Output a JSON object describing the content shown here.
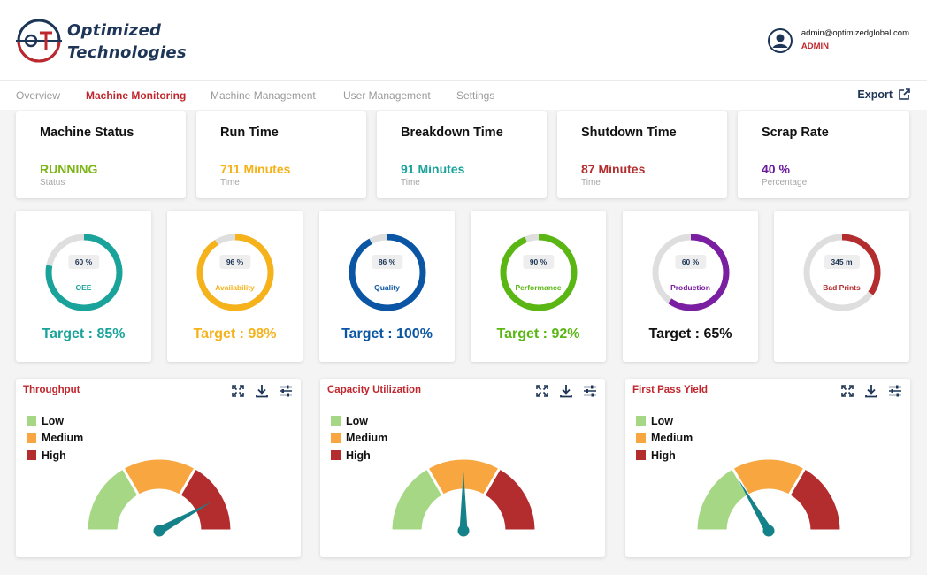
{
  "brand": {
    "line1": "Optimized",
    "line2": "Technologies",
    "logo_letters": "OT"
  },
  "user": {
    "email": "admin@optimizedglobal.com",
    "role": "ADMIN",
    "icon": "user-icon"
  },
  "nav": {
    "items": [
      "Overview",
      "Machine Monitoring",
      "Machine Management",
      "User Management",
      "Settings"
    ],
    "active": "Machine Monitoring",
    "export_label": "Export",
    "export_icon": "external-link-icon"
  },
  "colors": {
    "brand_red": "#c0272d",
    "navy": "#1d3557",
    "track": "#dedede"
  },
  "stats": [
    {
      "title": "Machine Status",
      "value": "RUNNING",
      "sub": "Status",
      "color": "#7cb518"
    },
    {
      "title": "Run Time",
      "value": "711 Minutes",
      "sub": "Time",
      "color": "#f5b21b"
    },
    {
      "title": "Breakdown Time",
      "value": "91 Minutes",
      "sub": "Time",
      "color": "#1aa39a"
    },
    {
      "title": "Shutdown Time",
      "value": "87 Minutes",
      "sub": "Time",
      "color": "#b32d2e"
    },
    {
      "title": "Scrap Rate",
      "value": "40 %",
      "sub": "Percentage",
      "color": "#6a1b9a"
    }
  ],
  "kpis": [
    {
      "pill": "60 %",
      "label": "OEE",
      "target": "Target : 85%",
      "fill": 0.78,
      "color": "#1aa39a",
      "target_color": "#1aa39a"
    },
    {
      "pill": "96 %",
      "label": "Availability",
      "target": "Target : 98%",
      "fill": 0.91,
      "color": "#f5b21b",
      "target_color": "#f5b21b"
    },
    {
      "pill": "86 %",
      "label": "Quality",
      "target": "Target : 100%",
      "fill": 0.92,
      "color": "#0b56a4",
      "target_color": "#0b56a4"
    },
    {
      "pill": "90 %",
      "label": "Performance",
      "target": "Target : 92%",
      "fill": 0.94,
      "color": "#5ab713",
      "target_color": "#5ab713"
    },
    {
      "pill": "60 %",
      "label": "Production",
      "target": "Target : 65%",
      "fill": 0.6,
      "color": "#7b1fa2",
      "target_color": "#111111"
    },
    {
      "pill": "345 m",
      "label": "Bad Prints",
      "target": "",
      "fill": 0.35,
      "color": "#b32d2e",
      "target_color": "#111111"
    }
  ],
  "gauges": [
    {
      "title": "Throughput",
      "value": 0.84
    },
    {
      "title": "Capacity Utilization",
      "value": 0.5
    },
    {
      "title": "First Pass Yield",
      "value": 0.33
    }
  ],
  "gauge_legend": [
    {
      "label": "Low",
      "color": "#a6d785"
    },
    {
      "label": "Medium",
      "color": "#f8a640"
    },
    {
      "label": "High",
      "color": "#b32d2e"
    }
  ],
  "gauge_icons": [
    "expand-icon",
    "download-icon",
    "sliders-icon"
  ],
  "needle_color": "#15828a"
}
